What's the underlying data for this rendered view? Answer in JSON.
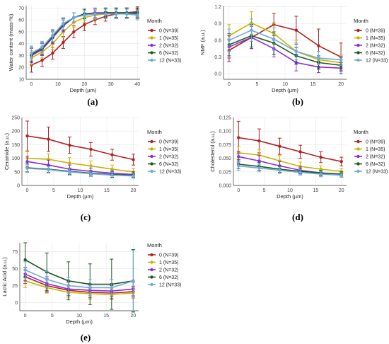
{
  "figure": {
    "labels": [
      "(a)",
      "(b)",
      "(c)",
      "(d)",
      "(e)"
    ]
  },
  "legend": {
    "title": "Month",
    "entries": [
      "0 (N=39)",
      "1 (N=35)",
      "2 (N=32)",
      "6 (N=32)",
      "12 (N=33)"
    ]
  },
  "colors": {
    "month_0": "#b22222",
    "month_1": "#c8b400",
    "month_2": "#8a2be2",
    "month_6": "#1e5a1e",
    "month_12": "#6fa8dc"
  },
  "chart_data": [
    {
      "type": "line",
      "panel": "(a)",
      "xlabel": "Depth (µm)",
      "ylabel": "Water content (mass-%)",
      "xlim": [
        -2,
        41
      ],
      "ylim": [
        10,
        72
      ],
      "xticks": [
        0,
        10,
        20,
        30,
        40
      ],
      "yticks": [
        10,
        20,
        30,
        40,
        50,
        60,
        70
      ],
      "x": [
        0,
        4,
        8,
        12,
        16,
        20,
        24,
        28,
        32,
        36,
        40
      ],
      "series": [
        {
          "name": "0 (N=39)",
          "values": [
            22,
            26,
            32,
            41,
            50,
            56,
            60,
            63,
            65,
            66,
            67
          ],
          "err": [
            6,
            5,
            5,
            5,
            5,
            5,
            4,
            4,
            4,
            4,
            4
          ]
        },
        {
          "name": "1 (N=35)",
          "values": [
            28,
            33,
            40,
            50,
            58,
            62,
            64,
            65,
            66,
            66,
            66
          ],
          "err": [
            6,
            5,
            5,
            5,
            4,
            4,
            4,
            4,
            4,
            4,
            4
          ]
        },
        {
          "name": "2 (N=32)",
          "values": [
            30,
            35,
            45,
            55,
            62,
            65,
            66,
            66,
            66,
            66,
            65
          ],
          "err": [
            6,
            5,
            5,
            5,
            4,
            4,
            4,
            4,
            4,
            4,
            4
          ]
        },
        {
          "name": "6 (N=32)",
          "values": [
            31,
            36,
            46,
            56,
            62,
            65,
            65,
            66,
            66,
            66,
            66
          ],
          "err": [
            6,
            5,
            5,
            5,
            4,
            4,
            4,
            4,
            4,
            4,
            4
          ]
        },
        {
          "name": "12 (N=33)",
          "values": [
            32,
            37,
            47,
            57,
            62,
            64,
            65,
            65,
            65,
            65,
            64
          ],
          "err": [
            6,
            5,
            5,
            5,
            4,
            4,
            4,
            4,
            4,
            4,
            4
          ]
        }
      ]
    },
    {
      "type": "line",
      "panel": "(b)",
      "xlabel": "Depth (µm)",
      "ylabel": "NMF (a.u.)",
      "xlim": [
        -1,
        21
      ],
      "ylim": [
        -0.1,
        1.22
      ],
      "xticks": [
        0,
        5,
        10,
        15,
        20
      ],
      "yticks": [
        0.0,
        0.3,
        0.6,
        0.9,
        1.2
      ],
      "ytick_labels": [
        "0.0",
        "0.3",
        "0.6",
        "0.9",
        "1.2"
      ],
      "x": [
        0,
        4,
        8,
        12,
        16,
        20
      ],
      "series": [
        {
          "name": "0 (N=39)",
          "values": [
            0.42,
            0.65,
            0.88,
            0.78,
            0.5,
            0.3
          ],
          "err": [
            0.2,
            0.2,
            0.2,
            0.25,
            0.3,
            0.25
          ]
        },
        {
          "name": "1 (N=35)",
          "values": [
            0.68,
            0.91,
            0.72,
            0.4,
            0.25,
            0.2
          ],
          "err": [
            0.2,
            0.2,
            0.2,
            0.2,
            0.15,
            0.12
          ]
        },
        {
          "name": "2 (N=32)",
          "values": [
            0.48,
            0.65,
            0.45,
            0.2,
            0.12,
            0.1
          ],
          "err": [
            0.2,
            0.2,
            0.15,
            0.15,
            0.1,
            0.1
          ]
        },
        {
          "name": "6 (N=32)",
          "values": [
            0.52,
            0.68,
            0.55,
            0.32,
            0.2,
            0.15
          ],
          "err": [
            0.2,
            0.2,
            0.2,
            0.15,
            0.12,
            0.1
          ]
        },
        {
          "name": "12 (N=33)",
          "values": [
            0.6,
            0.78,
            0.62,
            0.4,
            0.28,
            0.25
          ],
          "err": [
            0.2,
            0.2,
            0.2,
            0.15,
            0.12,
            0.1
          ]
        }
      ]
    },
    {
      "type": "line",
      "panel": "(c)",
      "xlabel": "Depth (µm)",
      "ylabel": "Ceramide (a.u.)",
      "xlim": [
        -1,
        21
      ],
      "ylim": [
        0,
        250
      ],
      "xticks": [
        0,
        5,
        10,
        15,
        20
      ],
      "yticks": [
        0,
        50,
        100,
        150,
        200,
        250
      ],
      "x": [
        0,
        4,
        8,
        12,
        16,
        20
      ],
      "series": [
        {
          "name": "0 (N=39)",
          "values": [
            182,
            170,
            148,
            133,
            113,
            95
          ],
          "err": [
            55,
            45,
            30,
            25,
            20,
            20
          ]
        },
        {
          "name": "1 (N=35)",
          "values": [
            100,
            96,
            82,
            72,
            60,
            50
          ],
          "err": [
            25,
            20,
            20,
            18,
            15,
            12
          ]
        },
        {
          "name": "2 (N=32)",
          "values": [
            88,
            75,
            60,
            52,
            45,
            40
          ],
          "err": [
            20,
            18,
            15,
            12,
            10,
            10
          ]
        },
        {
          "name": "6 (N=32)",
          "values": [
            65,
            60,
            52,
            45,
            40,
            37
          ],
          "err": [
            15,
            12,
            12,
            10,
            10,
            8
          ]
        },
        {
          "name": "12 (N=33)",
          "values": [
            63,
            58,
            50,
            43,
            38,
            35
          ],
          "err": [
            15,
            12,
            12,
            10,
            10,
            8
          ]
        }
      ]
    },
    {
      "type": "line",
      "panel": "(d)",
      "xlabel": "Depth (µm)",
      "ylabel": "Cholesterol (a.u.)",
      "xlim": [
        -1,
        21
      ],
      "ylim": [
        0,
        0.125
      ],
      "xticks": [
        0,
        5,
        10,
        15,
        20
      ],
      "yticks": [
        0.0,
        0.025,
        0.05,
        0.075,
        0.1,
        0.125
      ],
      "ytick_labels": [
        "0.000",
        "0.025",
        "0.050",
        "0.075",
        "0.100",
        "0.125"
      ],
      "x": [
        0,
        4,
        8,
        12,
        16,
        20
      ],
      "series": [
        {
          "name": "0 (N=39)",
          "values": [
            0.088,
            0.082,
            0.072,
            0.062,
            0.052,
            0.044
          ],
          "err": [
            0.03,
            0.022,
            0.015,
            0.012,
            0.01,
            0.008
          ]
        },
        {
          "name": "1 (N=35)",
          "values": [
            0.06,
            0.056,
            0.045,
            0.035,
            0.03,
            0.026
          ],
          "err": [
            0.012,
            0.01,
            0.01,
            0.008,
            0.006,
            0.005
          ]
        },
        {
          "name": "2 (N=32)",
          "values": [
            0.053,
            0.045,
            0.036,
            0.028,
            0.023,
            0.019
          ],
          "err": [
            0.01,
            0.01,
            0.008,
            0.006,
            0.005,
            0.004
          ]
        },
        {
          "name": "6 (N=32)",
          "values": [
            0.039,
            0.035,
            0.03,
            0.026,
            0.023,
            0.021
          ],
          "err": [
            0.008,
            0.007,
            0.006,
            0.005,
            0.005,
            0.004
          ]
        },
        {
          "name": "12 (N=33)",
          "values": [
            0.036,
            0.032,
            0.028,
            0.024,
            0.021,
            0.019
          ],
          "err": [
            0.008,
            0.007,
            0.006,
            0.005,
            0.005,
            0.004
          ]
        }
      ]
    },
    {
      "type": "line",
      "panel": "(e)",
      "xlabel": "Depth (µm)",
      "ylabel": "Lactic Acid (a.u.)",
      "xlim": [
        -1,
        21
      ],
      "ylim": [
        -12,
        88
      ],
      "xticks": [
        0,
        5,
        10,
        15,
        20
      ],
      "yticks": [
        0,
        25,
        50,
        75
      ],
      "x": [
        0,
        4,
        8,
        12,
        16,
        20
      ],
      "series": [
        {
          "name": "0 (N=39)",
          "values": [
            38,
            25,
            18,
            15,
            14,
            16
          ],
          "err": [
            10,
            10,
            8,
            8,
            8,
            8
          ]
        },
        {
          "name": "1 (N=35)",
          "values": [
            32,
            22,
            15,
            13,
            12,
            14
          ],
          "err": [
            10,
            8,
            8,
            8,
            8,
            8
          ]
        },
        {
          "name": "2 (N=32)",
          "values": [
            42,
            28,
            20,
            18,
            17,
            20
          ],
          "err": [
            10,
            10,
            10,
            8,
            8,
            10
          ]
        },
        {
          "name": "6 (N=32)",
          "values": [
            63,
            45,
            32,
            27,
            27,
            32
          ],
          "err": [
            25,
            28,
            28,
            30,
            37,
            46
          ]
        },
        {
          "name": "12 (N=33)",
          "values": [
            48,
            34,
            25,
            22,
            22,
            32
          ],
          "err": [
            12,
            12,
            12,
            12,
            12,
            45
          ]
        }
      ]
    }
  ]
}
